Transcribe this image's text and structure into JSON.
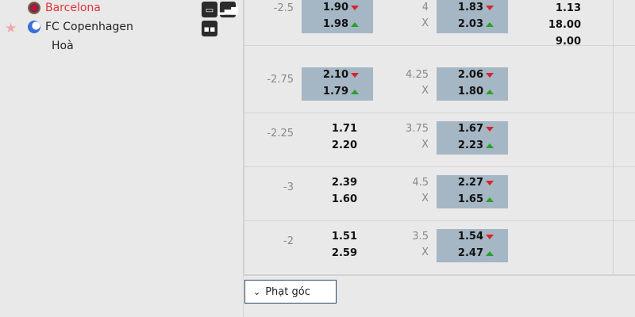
{
  "match": {
    "home": "Barcelona",
    "away": "FC Copenhagen",
    "draw": "Hoà"
  },
  "icons": {
    "tv": "tv-icon",
    "stats": "stats-icon",
    "lineup": "lineup-icon",
    "star": "star-icon"
  },
  "colors": {
    "home": "#e0343b",
    "highlight": "#a5b6c4",
    "down": "#d8232a",
    "up": "#2ca02c"
  },
  "rows": [
    {
      "handicap": "-2.5",
      "h_odds": [
        {
          "v": "1.90",
          "t": "down"
        },
        {
          "v": "1.98",
          "t": "up"
        }
      ],
      "h_hl": true,
      "ou": "4",
      "ou_x": "X",
      "ou_odds": [
        {
          "v": "1.83",
          "t": "down"
        },
        {
          "v": "2.03",
          "t": "up"
        }
      ],
      "ou_hl": true,
      "x12": [
        "1.13",
        "18.00",
        "9.00"
      ]
    },
    {
      "handicap": "-2.75",
      "h_odds": [
        {
          "v": "2.10",
          "t": "down"
        },
        {
          "v": "1.79",
          "t": "up"
        }
      ],
      "h_hl": true,
      "ou": "4.25",
      "ou_x": "X",
      "ou_odds": [
        {
          "v": "2.06",
          "t": "down"
        },
        {
          "v": "1.80",
          "t": "up"
        }
      ],
      "ou_hl": true,
      "x12": []
    },
    {
      "handicap": "-2.25",
      "h_odds": [
        {
          "v": "1.71",
          "t": ""
        },
        {
          "v": "2.20",
          "t": ""
        }
      ],
      "h_hl": false,
      "ou": "3.75",
      "ou_x": "X",
      "ou_odds": [
        {
          "v": "1.67",
          "t": "down"
        },
        {
          "v": "2.23",
          "t": "up"
        }
      ],
      "ou_hl": true,
      "x12": []
    },
    {
      "handicap": "-3",
      "h_odds": [
        {
          "v": "2.39",
          "t": ""
        },
        {
          "v": "1.60",
          "t": ""
        }
      ],
      "h_hl": false,
      "ou": "4.5",
      "ou_x": "X",
      "ou_odds": [
        {
          "v": "2.27",
          "t": "down"
        },
        {
          "v": "1.65",
          "t": "up"
        }
      ],
      "ou_hl": true,
      "x12": []
    },
    {
      "handicap": "-2",
      "h_odds": [
        {
          "v": "1.51",
          "t": ""
        },
        {
          "v": "2.59",
          "t": ""
        }
      ],
      "h_hl": false,
      "ou": "3.5",
      "ou_x": "X",
      "ou_odds": [
        {
          "v": "1.54",
          "t": "down"
        },
        {
          "v": "2.47",
          "t": "up"
        }
      ],
      "ou_hl": true,
      "x12": []
    }
  ],
  "corner_button": {
    "label": "Phạt góc",
    "icon": "chevron-down-icon"
  }
}
